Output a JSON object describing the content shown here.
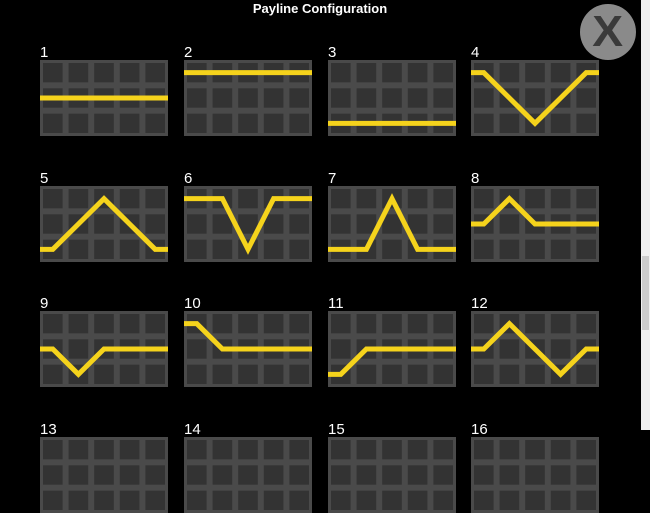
{
  "title": "Payline Configuration",
  "close_label": "X",
  "colors": {
    "line": "#f5d31c",
    "cell": "#333333",
    "grid": "#4a4a4a",
    "background": "#000000",
    "close_button": "#8a8a8a"
  },
  "paylines": [
    {
      "number": "1",
      "rows": [
        1,
        1,
        1,
        1,
        1
      ]
    },
    {
      "number": "2",
      "rows": [
        0,
        0,
        0,
        0,
        0
      ]
    },
    {
      "number": "3",
      "rows": [
        2,
        2,
        2,
        2,
        2
      ]
    },
    {
      "number": "4",
      "rows": [
        0,
        1,
        2,
        1,
        0
      ]
    },
    {
      "number": "5",
      "rows": [
        2,
        1,
        0,
        1,
        2
      ]
    },
    {
      "number": "6",
      "rows": [
        0,
        0,
        2,
        0,
        0
      ]
    },
    {
      "number": "7",
      "rows": [
        2,
        2,
        0,
        2,
        2
      ]
    },
    {
      "number": "8",
      "rows": [
        1,
        0,
        1,
        1,
        1
      ]
    },
    {
      "number": "9",
      "rows": [
        1,
        2,
        1,
        1,
        1
      ]
    },
    {
      "number": "10",
      "rows": [
        0,
        1,
        1,
        1,
        1
      ]
    },
    {
      "number": "11",
      "rows": [
        2,
        1,
        1,
        1,
        1
      ]
    },
    {
      "number": "12",
      "rows": [
        1,
        0,
        1,
        2,
        1
      ]
    },
    {
      "number": "13",
      "rows": []
    },
    {
      "number": "14",
      "rows": []
    },
    {
      "number": "15",
      "rows": []
    },
    {
      "number": "16",
      "rows": []
    }
  ]
}
